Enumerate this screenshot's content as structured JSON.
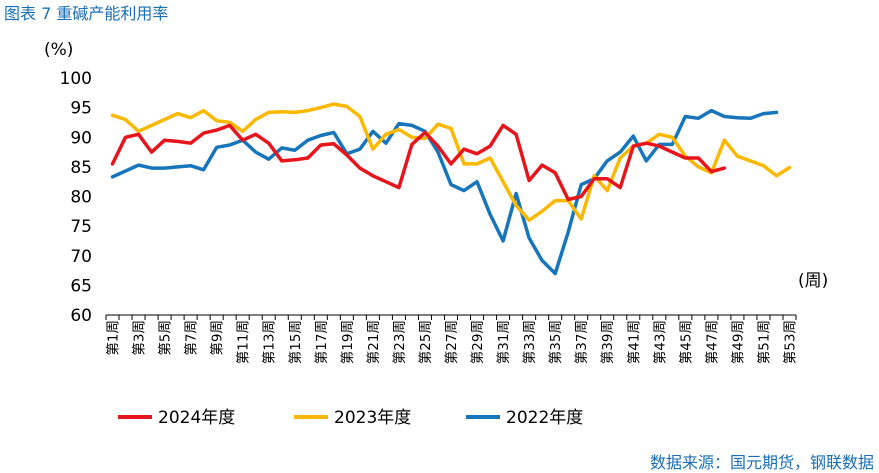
{
  "title": "图表 7  重碱产能利用率",
  "source": "数据来源：国元期货，钢联数据",
  "chart_data": {
    "type": "line",
    "title": "重碱产能利用率",
    "y_unit": "(%)",
    "x_unit": "(周)",
    "ylim": [
      60,
      100
    ],
    "yticks": [
      60,
      65,
      70,
      75,
      80,
      85,
      90,
      95,
      100
    ],
    "x_tick_labels": [
      "第1周",
      "第3周",
      "第5周",
      "第7周",
      "第9周",
      "第11周",
      "第13周",
      "第15周",
      "第17周",
      "第19周",
      "第21周",
      "第23周",
      "第25周",
      "第27周",
      "第29周",
      "第31周",
      "第33周",
      "第35周",
      "第37周",
      "第39周",
      "第41周",
      "第43周",
      "第45周",
      "第47周",
      "第49周",
      "第51周",
      "第53周"
    ],
    "x_count": 53,
    "grid": false,
    "legend_position": "bottom",
    "series": [
      {
        "name": "2024年度",
        "color": "#e8141c",
        "values": [
          85.5,
          90,
          90.5,
          87.5,
          89.5,
          89.3,
          89.0,
          90.7,
          91.2,
          92.0,
          89.5,
          90.5,
          89.0,
          86.0,
          86.2,
          86.5,
          88.7,
          88.9,
          87.0,
          84.8,
          83.5,
          82.5,
          81.5,
          88.8,
          90.8,
          88.5,
          85.5,
          88.0,
          87.2,
          88.5,
          92.0,
          90.5,
          82.7,
          85.3,
          84.0,
          79.5,
          80.0,
          83.0,
          83.0,
          81.5,
          88.5,
          89.0,
          88.5,
          87.5,
          86.5,
          86.5,
          84.2,
          84.8
        ]
      },
      {
        "name": "2023年度",
        "color": "#fbb800",
        "values": [
          93.7,
          93.0,
          91.0,
          92.0,
          93.0,
          94.0,
          93.3,
          94.5,
          92.8,
          92.5,
          91.0,
          93.0,
          94.2,
          94.3,
          94.2,
          94.5,
          95.0,
          95.6,
          95.2,
          93.5,
          88.0,
          90.5,
          91.3,
          90.0,
          89.8,
          92.2,
          91.5,
          85.5,
          85.5,
          86.5,
          82.5,
          78.5,
          76.0,
          77.5,
          79.3,
          79.3,
          76.2,
          83.5,
          81.0,
          86.5,
          88.5,
          89.0,
          90.5,
          90.0,
          86.8,
          85.0,
          84.0,
          89.5,
          86.8,
          86.0,
          85.2,
          83.5,
          84.9
        ]
      },
      {
        "name": "2022年度",
        "color": "#1775bc",
        "values": [
          83.3,
          84.3,
          85.3,
          84.8,
          84.8,
          85.0,
          85.2,
          84.5,
          88.3,
          88.7,
          89.5,
          87.5,
          86.3,
          88.2,
          87.8,
          89.5,
          90.3,
          90.8,
          87.2,
          88.0,
          91.0,
          89.0,
          92.3,
          92.0,
          91.0,
          87.5,
          82.0,
          81.0,
          82.5,
          77.0,
          72.5,
          80.5,
          73.0,
          69.2,
          67.0,
          74.0,
          82.0,
          83.0,
          86.0,
          87.5,
          90.2,
          86.0,
          88.8,
          88.8,
          93.5,
          93.2,
          94.5,
          93.5,
          93.3,
          93.2,
          94.0,
          94.2
        ]
      }
    ]
  }
}
